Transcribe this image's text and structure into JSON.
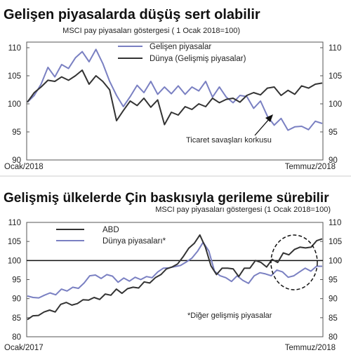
{
  "chart_data": [
    {
      "type": "line",
      "title": "Gelişen piyasalarda düşüş sert olabilir",
      "subtitle": "MSCI pay piyasaları göstergesi ( 1 Ocak 2018=100)",
      "x_start_label": "Ocak/2018",
      "x_end_label": "Temmuz/2018",
      "ylim": [
        90,
        111
      ],
      "yticks": [
        90,
        95,
        100,
        105,
        110
      ],
      "legend_position": "top-right",
      "annotation": "Ticaret savaşları korkusu",
      "colors": {
        "emerging": "#7a80c2",
        "world": "#333333"
      },
      "series": [
        {
          "name": "Gelişen piyasalar",
          "values": [
            100.3,
            101.5,
            103.5,
            106.5,
            104.8,
            107.0,
            106.3,
            108.2,
            109.3,
            107.5,
            109.7,
            107.2,
            104.0,
            101.5,
            99.5,
            101.3,
            103.3,
            102.0,
            104.0,
            101.7,
            103.0,
            101.8,
            103.2,
            101.7,
            103.0,
            102.3,
            104.0,
            101.2,
            103.0,
            101.2,
            100.2,
            101.5,
            101.3,
            99.2,
            100.5,
            97.8,
            96.2,
            97.4,
            95.3,
            95.9,
            96.0,
            95.4,
            96.9,
            96.5
          ]
        },
        {
          "name": "Dünya (Gelişmiş piyasalar)",
          "values": [
            100.3,
            102.0,
            103.0,
            104.2,
            104.0,
            104.8,
            104.2,
            105.0,
            106.0,
            103.5,
            105.0,
            104.0,
            102.5,
            97.0,
            98.8,
            100.5,
            99.7,
            101.0,
            99.4,
            100.7,
            96.3,
            98.5,
            98.0,
            99.5,
            99.0,
            100.0,
            99.5,
            101.0,
            100.2,
            100.8,
            101.0,
            100.3,
            101.5,
            102.0,
            101.6,
            102.8,
            103.0,
            101.5,
            102.4,
            101.7,
            103.2,
            102.8,
            103.5,
            103.7
          ]
        }
      ]
    },
    {
      "type": "line",
      "title": "Gelişmiş ülkelerde Çin baskısıyla gerileme sürebilir",
      "subtitle": "MSCI pay piyasaları göstergesi (1 Ocak 2018=100)",
      "x_start_label": "Ocak/2017",
      "x_end_label": "Temmuz/2018",
      "ylim": [
        80,
        110
      ],
      "yticks": [
        80,
        85,
        90,
        95,
        100,
        105,
        110
      ],
      "reference_line": 100,
      "legend_position": "top-left",
      "annotation": "*Diğer gelişmiş piyasalar",
      "colors": {
        "usa": "#333333",
        "world": "#7a80c2"
      },
      "series": [
        {
          "name": "ABD",
          "values": [
            84.5,
            85.5,
            85.6,
            86.5,
            87.0,
            86.5,
            88.5,
            89.0,
            88.3,
            88.7,
            89.7,
            89.6,
            90.3,
            89.8,
            91.2,
            90.9,
            92.5,
            91.4,
            92.6,
            93.0,
            92.8,
            94.4,
            94.1,
            95.5,
            96.3,
            97.8,
            98.3,
            99.1,
            101.0,
            103.2,
            104.5,
            106.7,
            103.5,
            98.6,
            96.3,
            98.0,
            98.0,
            97.8,
            95.8,
            98.0,
            98.0,
            100.0,
            99.5,
            98.3,
            100.3,
            99.5,
            102.0,
            101.5,
            102.9,
            103.5,
            103.3,
            103.5,
            105.2,
            105.7
          ]
        },
        {
          "name": "Dünya piyasaları*",
          "values": [
            90.7,
            90.3,
            90.2,
            90.9,
            91.5,
            91.0,
            92.5,
            92.0,
            93.0,
            92.7,
            94.1,
            96.0,
            96.2,
            95.3,
            96.3,
            95.9,
            94.3,
            95.4,
            94.6,
            95.6,
            95.0,
            95.8,
            95.5,
            97.0,
            98.0,
            98.1,
            98.4,
            98.7,
            99.6,
            100.6,
            102.4,
            104.8,
            102.5,
            97.2,
            96.0,
            95.5,
            94.5,
            96.0,
            94.8,
            94.0,
            96.0,
            96.8,
            96.5,
            96.0,
            97.5,
            97.0,
            95.6,
            96.0,
            97.0,
            98.0,
            97.2,
            98.5,
            98.5
          ]
        }
      ]
    }
  ]
}
